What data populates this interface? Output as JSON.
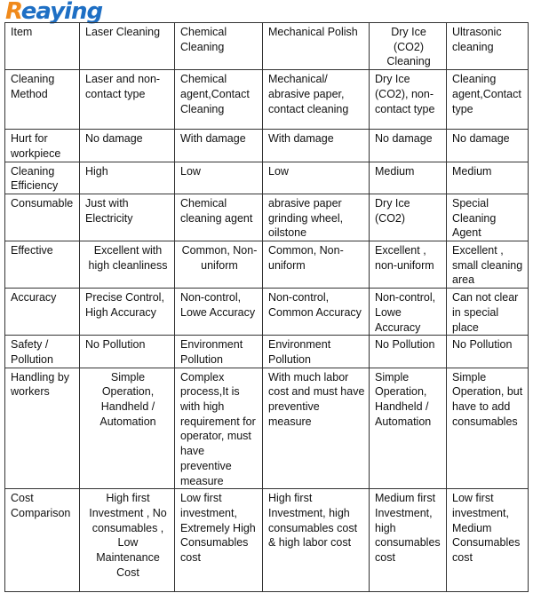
{
  "logo": {
    "text": "Reaying",
    "brand_colors": [
      "#f08a1c",
      "#1e6fc4"
    ]
  },
  "table": {
    "headers": [
      "Item",
      "Laser Cleaning",
      "Chemical Cleaning",
      "Mechanical   Polish",
      "Dry Ice (CO2) Cleaning",
      "Ultrasonic cleaning"
    ],
    "rows": [
      [
        "Cleaning Method",
        "Laser and non-contact type",
        "Chemical agent,Contact Cleaning",
        "Mechanical/ abrasive paper, contact cleaning",
        "Dry Ice (CO2), non-contact type",
        "Cleaning agent,Contact type"
      ],
      [
        "Hurt for workpiece",
        "No damage",
        "With damage",
        "With damage",
        "No damage",
        "No damage"
      ],
      [
        "Cleaning Efficiency",
        "High",
        "Low",
        "Low",
        "Medium",
        "Medium"
      ],
      [
        "Consumable",
        "Just with Electricity",
        "Chemical cleaning agent",
        "abrasive paper grinding wheel, oilstone",
        "Dry Ice (CO2)",
        "Special Cleaning Agent"
      ],
      [
        "Effective",
        "Excellent with high cleanliness",
        "Common, Non-uniform",
        "Common, Non-uniform",
        "Excellent , non-uniform",
        "Excellent , small cleaning area"
      ],
      [
        "Accuracy",
        "Precise Control, High Accuracy",
        "Non-control, Lowe Accuracy",
        "Non-control, Common Accuracy",
        "Non-control, Lowe Accuracy",
        "Can not clear in special place"
      ],
      [
        "Safety / Pollution",
        "No Pollution",
        "Environment Pollution",
        "Environment Pollution",
        "No Pollution",
        "No Pollution"
      ],
      [
        "Handling by workers",
        "Simple Operation, Handheld / Automation",
        "Complex process,It is with high requirement for operator, must have preventive measure",
        "With much labor cost and must have preventive measure",
        "Simple Operation, Handheld / Automation",
        "Simple Operation, but have to add consumables"
      ],
      [
        "Cost Comparison",
        "High first Investment , No consumables , Low Maintenance Cost",
        "Low first investment, Extremely High Consumables cost",
        "High first Investment, high consumables cost & high labor cost",
        "Medium first Investment, high consumables cost",
        "Low first investment, Medium Consumables cost"
      ]
    ]
  }
}
